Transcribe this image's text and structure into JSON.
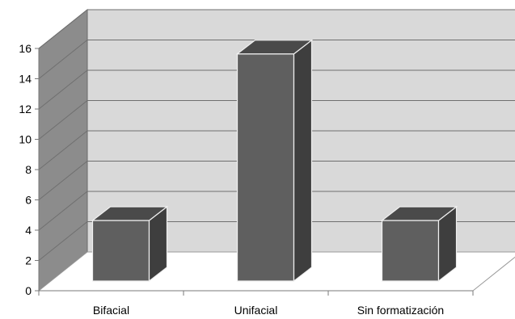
{
  "chart_data": {
    "type": "bar",
    "style": "3d-column",
    "title": "",
    "xlabel": "",
    "ylabel": "",
    "categories": [
      "Bifacial",
      "Unifacial",
      "Sin formatización"
    ],
    "values": [
      4,
      15,
      4
    ],
    "ylim": [
      0,
      16
    ],
    "yticks": [
      0,
      2,
      4,
      6,
      8,
      10,
      12,
      14,
      16
    ],
    "grid": true,
    "legend": "none",
    "colors": {
      "bar_front": "#5f5f5f",
      "bar_side": "#3e3e3e",
      "bar_top": "#4a4a4a",
      "back_wall": "#d9d9d9",
      "side_wall": "#8c8c8c",
      "floor": "#ffffff",
      "grid": "#6f6f6f"
    }
  }
}
